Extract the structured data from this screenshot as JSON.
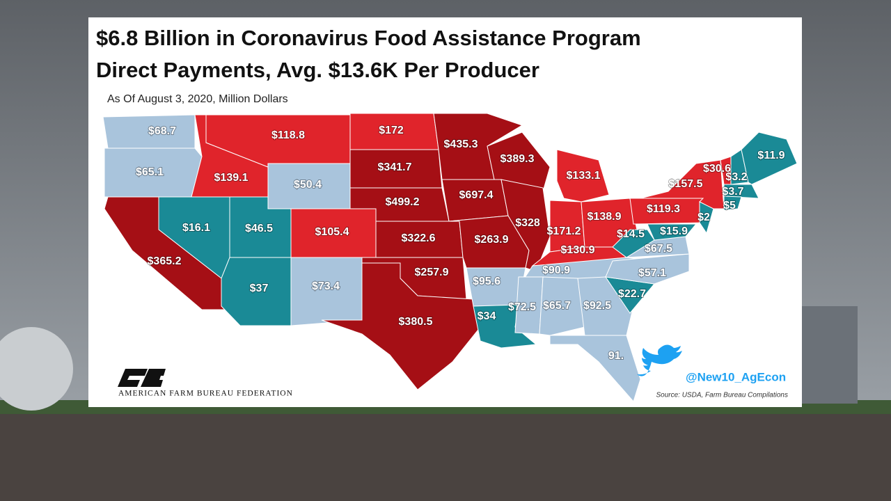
{
  "header": {
    "title_line1": "$6.8 Billion in Coronavirus Food Assistance Program",
    "title_line2": "Direct Payments, Avg. $13.6K Per Producer",
    "subtitle": "As Of August 3, 2020, Million Dollars"
  },
  "states": [
    {
      "label": "$68.7",
      "color": "#a9c4dc"
    },
    {
      "label": "$65.1",
      "color": "#a9c4dc"
    },
    {
      "label": "$139.1",
      "color": "#e0242b"
    },
    {
      "label": "$118.8",
      "color": "#e0242b"
    },
    {
      "label": "$50.4",
      "color": "#a9c4dc"
    },
    {
      "label": "$172",
      "color": "#e0242b"
    },
    {
      "label": "$341.7",
      "color": "#a50f15"
    },
    {
      "label": "$499.2",
      "color": "#a50f15"
    },
    {
      "label": "$105.4",
      "color": "#e0242b"
    },
    {
      "label": "$46.5",
      "color": "#1a8a96"
    },
    {
      "label": "$16.1",
      "color": "#1a8a96"
    },
    {
      "label": "$365.2",
      "color": "#a50f15"
    },
    {
      "label": "$37",
      "color": "#1a8a96"
    },
    {
      "label": "$73.4",
      "color": "#a9c4dc"
    },
    {
      "label": "$322.6",
      "color": "#a50f15"
    },
    {
      "label": "$257.9",
      "color": "#a50f15"
    },
    {
      "label": "$380.5",
      "color": "#a50f15"
    },
    {
      "label": "$435.3",
      "color": "#a50f15"
    },
    {
      "label": "$697.4",
      "color": "#a50f15"
    },
    {
      "label": "$263.9",
      "color": "#a50f15"
    },
    {
      "label": "$389.3",
      "color": "#a50f15"
    },
    {
      "label": "$328",
      "color": "#a50f15"
    },
    {
      "label": "$133.1",
      "color": "#e0242b"
    },
    {
      "label": "$171.2",
      "color": "#e0242b"
    },
    {
      "label": "$138.9",
      "color": "#e0242b"
    },
    {
      "label": "$130.9",
      "color": "#e0242b"
    },
    {
      "label": "$90.9",
      "color": "#a9c4dc"
    },
    {
      "label": "$95.6",
      "color": "#a9c4dc"
    },
    {
      "label": "$34",
      "color": "#1a8a96"
    },
    {
      "label": "$72.5",
      "color": "#a9c4dc"
    },
    {
      "label": "$65.7",
      "color": "#a9c4dc"
    },
    {
      "label": "$92.5",
      "color": "#a9c4dc"
    },
    {
      "label": "91.",
      "color": "#a9c4dc"
    },
    {
      "label": "$22.7",
      "color": "#1a8a96"
    },
    {
      "label": "$57.1",
      "color": "#a9c4dc"
    },
    {
      "label": "$67.5",
      "color": "#a9c4dc"
    },
    {
      "label": "$14.5",
      "color": "#1a8a96"
    },
    {
      "label": "$119.3",
      "color": "#e0242b"
    },
    {
      "label": "$15.9",
      "color": "#1a8a96"
    },
    {
      "label": "$2",
      "color": "#1a8a96"
    },
    {
      "label": "$157.5",
      "color": "#e0242b"
    },
    {
      "label": "$30.6",
      "color": "#e0242b"
    },
    {
      "label": "$3.2",
      "color": "#1a8a96"
    },
    {
      "label": "$11.9",
      "color": "#1a8a96"
    },
    {
      "label": "$3.7",
      "color": "#1a8a96"
    },
    {
      "label": "$5",
      "color": "#1a8a96"
    }
  ],
  "logo": {
    "text": "AMERICAN FARM BUREAU FEDERATION"
  },
  "twitter": {
    "handle": "@New10_AgEcon"
  },
  "source": "Source: USDA, Farm Bureau Compilations"
}
